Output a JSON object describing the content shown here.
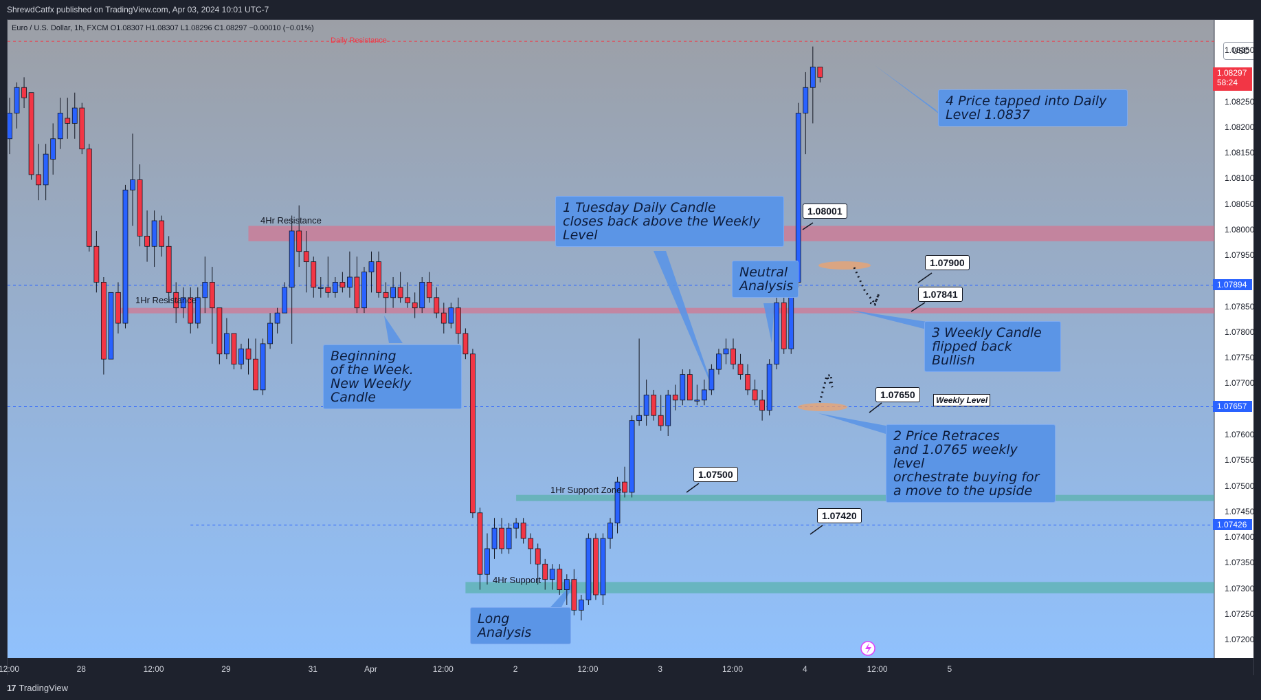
{
  "header": {
    "publisher": "ShrewdCatfx published on TradingView.com, Apr 03, 2024 10:01 UTC-7"
  },
  "footer": {
    "logo_mark": "17",
    "logo_text": "TradingView"
  },
  "chart_data": {
    "type": "candlestick",
    "symbol_line": "Euro / U.S. Dollar, 1h, FXCM  O1.08307  H1.08307  L1.08296  C1.08297  −0.00010 (−0.01%)",
    "currency": "USD",
    "ylim": [
      1.0718,
      1.08385
    ],
    "y_ticks": [
      "1.08350",
      "1.08250",
      "1.08200",
      "1.08150",
      "1.08100",
      "1.08050",
      "1.08000",
      "1.07950",
      "1.07850",
      "1.07800",
      "1.07750",
      "1.07700",
      "1.07600",
      "1.07550",
      "1.07500",
      "1.07450",
      "1.07400",
      "1.07350",
      "1.07300",
      "1.07250",
      "1.07200"
    ],
    "x_ticks": [
      {
        "label": "12:00",
        "b": 0
      },
      {
        "label": "28",
        "b": 10
      },
      {
        "label": "12:00",
        "b": 20
      },
      {
        "label": "29",
        "b": 30
      },
      {
        "label": "31",
        "b": 42
      },
      {
        "label": "Apr",
        "b": 50
      },
      {
        "label": "12:00",
        "b": 60
      },
      {
        "label": "2",
        "b": 70
      },
      {
        "label": "12:00",
        "b": 80
      },
      {
        "label": "3",
        "b": 90
      },
      {
        "label": "12:00",
        "b": 100
      },
      {
        "label": "4",
        "b": 110
      },
      {
        "label": "12:00",
        "b": 120
      },
      {
        "label": "5",
        "b": 130
      }
    ],
    "current_price": {
      "value": "1.08297",
      "countdown": "58:24",
      "color": "#f23645"
    },
    "price_badges": [
      {
        "value": "1.07894",
        "y": 1.07894
      },
      {
        "value": "1.07657",
        "y": 1.07657
      },
      {
        "value": "1.07426",
        "y": 1.07426
      }
    ],
    "candles": [
      [
        1.0818,
        1.0826,
        1.0815,
        1.0823
      ],
      [
        1.0823,
        1.0829,
        1.082,
        1.0828
      ],
      [
        1.0828,
        1.083,
        1.0824,
        1.0826
      ],
      [
        1.0827,
        1.0827,
        1.081,
        1.0811
      ],
      [
        1.0811,
        1.0817,
        1.0806,
        1.0809
      ],
      [
        1.0809,
        1.0817,
        1.0806,
        1.0815
      ],
      [
        1.0814,
        1.0821,
        1.0811,
        1.0818
      ],
      [
        1.0818,
        1.0826,
        1.0816,
        1.0823
      ],
      [
        1.0822,
        1.0826,
        1.0818,
        1.0821
      ],
      [
        1.0821,
        1.0827,
        1.0818,
        1.0824
      ],
      [
        1.0824,
        1.0825,
        1.0815,
        1.0816
      ],
      [
        1.0816,
        1.0817,
        1.0796,
        1.0797
      ],
      [
        1.0797,
        1.08,
        1.0788,
        1.079
      ],
      [
        1.079,
        1.0791,
        1.0772,
        1.0775
      ],
      [
        1.0775,
        1.0788,
        1.0775,
        1.0788
      ],
      [
        1.0788,
        1.079,
        1.078,
        1.0782
      ],
      [
        1.0782,
        1.0809,
        1.0781,
        1.0808
      ],
      [
        1.0808,
        1.0819,
        1.0801,
        1.081
      ],
      [
        1.081,
        1.0813,
        1.0797,
        1.0799
      ],
      [
        1.0799,
        1.0804,
        1.0794,
        1.0797
      ],
      [
        1.0797,
        1.0804,
        1.0793,
        1.0802
      ],
      [
        1.0802,
        1.0803,
        1.0795,
        1.0797
      ],
      [
        1.0797,
        1.0799,
        1.0786,
        1.0788
      ],
      [
        1.0788,
        1.079,
        1.0782,
        1.0785
      ],
      [
        1.0785,
        1.0789,
        1.0783,
        1.0787
      ],
      [
        1.0787,
        1.0789,
        1.078,
        1.0782
      ],
      [
        1.0782,
        1.0789,
        1.0781,
        1.0787
      ],
      [
        1.0787,
        1.0795,
        1.0784,
        1.079
      ],
      [
        1.079,
        1.0793,
        1.0778,
        1.0785
      ],
      [
        1.0785,
        1.0785,
        1.0774,
        1.0776
      ],
      [
        1.0776,
        1.0783,
        1.0775,
        1.078
      ],
      [
        1.078,
        1.078,
        1.0773,
        1.0774
      ],
      [
        1.0774,
        1.0778,
        1.0773,
        1.0777
      ],
      [
        1.0777,
        1.0779,
        1.0772,
        1.0775
      ],
      [
        1.0775,
        1.0779,
        1.0769,
        1.0769
      ],
      [
        1.0769,
        1.0779,
        1.0768,
        1.0778
      ],
      [
        1.0778,
        1.0784,
        1.0777,
        1.0782
      ],
      [
        1.0782,
        1.0785,
        1.078,
        1.0784
      ],
      [
        1.0784,
        1.079,
        1.0784,
        1.0789
      ],
      [
        1.0789,
        1.0803,
        1.0778,
        1.08
      ],
      [
        1.08,
        1.0805,
        1.0793,
        1.0796
      ],
      [
        1.0796,
        1.08,
        1.0788,
        1.0794
      ],
      [
        1.0794,
        1.0795,
        1.0787,
        1.0789
      ],
      [
        1.0789,
        1.0791,
        1.0787,
        1.0789
      ],
      [
        1.0789,
        1.0795,
        1.0787,
        1.0788
      ],
      [
        1.0788,
        1.0791,
        1.0787,
        1.079
      ],
      [
        1.079,
        1.0792,
        1.0788,
        1.0789
      ],
      [
        1.0789,
        1.0796,
        1.0787,
        1.0791
      ],
      [
        1.0791,
        1.0795,
        1.0784,
        1.0785
      ],
      [
        1.0785,
        1.0793,
        1.0784,
        1.0792
      ],
      [
        1.0792,
        1.0796,
        1.0788,
        1.0794
      ],
      [
        1.0794,
        1.0796,
        1.0787,
        1.0788
      ],
      [
        1.0788,
        1.079,
        1.0784,
        1.0787
      ],
      [
        1.0787,
        1.0791,
        1.0785,
        1.0789
      ],
      [
        1.0789,
        1.0792,
        1.0786,
        1.0787
      ],
      [
        1.0787,
        1.079,
        1.0785,
        1.0786
      ],
      [
        1.0786,
        1.0788,
        1.0783,
        1.0785
      ],
      [
        1.0785,
        1.0791,
        1.0784,
        1.079
      ],
      [
        1.079,
        1.0792,
        1.0786,
        1.0787
      ],
      [
        1.0787,
        1.0789,
        1.0783,
        1.0784
      ],
      [
        1.0784,
        1.0786,
        1.078,
        1.0782
      ],
      [
        1.0782,
        1.0786,
        1.0781,
        1.0785
      ],
      [
        1.0785,
        1.0787,
        1.0778,
        1.078
      ],
      [
        1.078,
        1.0781,
        1.0775,
        1.0776
      ],
      [
        1.0776,
        1.0777,
        1.0744,
        1.0745
      ],
      [
        1.0745,
        1.0746,
        1.073,
        1.0733
      ],
      [
        1.0733,
        1.0741,
        1.0731,
        1.0738
      ],
      [
        1.0738,
        1.0744,
        1.0736,
        1.0742
      ],
      [
        1.0742,
        1.0744,
        1.0737,
        1.0738
      ],
      [
        1.0738,
        1.0743,
        1.0737,
        1.0742
      ],
      [
        1.0742,
        1.0744,
        1.074,
        1.0743
      ],
      [
        1.0743,
        1.0744,
        1.0739,
        1.074
      ],
      [
        1.074,
        1.0741,
        1.0735,
        1.0738
      ],
      [
        1.0738,
        1.0739,
        1.0731,
        1.0735
      ],
      [
        1.0735,
        1.0736,
        1.073,
        1.0732
      ],
      [
        1.0732,
        1.0735,
        1.073,
        1.0734
      ],
      [
        1.0734,
        1.0735,
        1.0729,
        1.073
      ],
      [
        1.073,
        1.0733,
        1.0727,
        1.0732
      ],
      [
        1.0732,
        1.0734,
        1.0725,
        1.0726
      ],
      [
        1.0726,
        1.0729,
        1.0724,
        1.0728
      ],
      [
        1.0728,
        1.0741,
        1.0727,
        1.074
      ],
      [
        1.074,
        1.0741,
        1.0728,
        1.0729
      ],
      [
        1.0729,
        1.0741,
        1.0727,
        1.074
      ],
      [
        1.074,
        1.0744,
        1.0738,
        1.0743
      ],
      [
        1.0743,
        1.0752,
        1.0741,
        1.0751
      ],
      [
        1.0751,
        1.0754,
        1.0748,
        1.0749
      ],
      [
        1.0749,
        1.0764,
        1.0748,
        1.0763
      ],
      [
        1.0763,
        1.0779,
        1.0762,
        1.0764
      ],
      [
        1.0764,
        1.0771,
        1.0762,
        1.0768
      ],
      [
        1.0768,
        1.0769,
        1.0763,
        1.0764
      ],
      [
        1.0764,
        1.0768,
        1.0761,
        1.0762
      ],
      [
        1.0762,
        1.0769,
        1.076,
        1.0768
      ],
      [
        1.0768,
        1.077,
        1.0765,
        1.0767
      ],
      [
        1.0767,
        1.0773,
        1.0766,
        1.0772
      ],
      [
        1.0772,
        1.0773,
        1.0767,
        1.0767
      ],
      [
        1.0767,
        1.077,
        1.0766,
        1.0767
      ],
      [
        1.0767,
        1.0771,
        1.0766,
        1.0769
      ],
      [
        1.0769,
        1.0774,
        1.0768,
        1.0773
      ],
      [
        1.0773,
        1.0777,
        1.0772,
        1.0776
      ],
      [
        1.0776,
        1.0779,
        1.0774,
        1.0777
      ],
      [
        1.0777,
        1.0779,
        1.0773,
        1.0774
      ],
      [
        1.0774,
        1.0776,
        1.0771,
        1.0772
      ],
      [
        1.0772,
        1.0774,
        1.0768,
        1.0769
      ],
      [
        1.0769,
        1.0771,
        1.0766,
        1.0767
      ],
      [
        1.0767,
        1.0769,
        1.0763,
        1.0765
      ],
      [
        1.0765,
        1.0775,
        1.0764,
        1.0774
      ],
      [
        1.0774,
        1.0787,
        1.0773,
        1.0786
      ],
      [
        1.0786,
        1.0789,
        1.0776,
        1.0777
      ],
      [
        1.0777,
        1.0792,
        1.0776,
        1.079
      ],
      [
        1.079,
        1.0825,
        1.0789,
        1.0823
      ],
      [
        1.0823,
        1.0831,
        1.0815,
        1.0828
      ],
      [
        1.0828,
        1.0836,
        1.0821,
        1.0832
      ],
      [
        1.0832,
        1.0832,
        1.0829,
        1.083
      ]
    ],
    "levels": [
      {
        "name": "Daily Resistance",
        "price": 1.0837,
        "style": "dashed",
        "color": "#f23645",
        "label_visible": true
      },
      {
        "name": "4Hr Resistance",
        "price_top": 1.0801,
        "price_bottom": 1.0798,
        "start_bar": 33,
        "color": "#e06a86",
        "label_visible": true
      },
      {
        "name": "1Hr Resistance",
        "price_top": 1.0785,
        "price_bottom": 1.0784,
        "start_bar": 15,
        "color": "#e06a86",
        "label_visible": true
      },
      {
        "name": "1Hr Support Zone",
        "price_top": 1.07485,
        "price_bottom": 1.07473,
        "start_bar": 70,
        "color": "#4caf9e",
        "label_visible": true
      },
      {
        "name": "4Hr Support",
        "price_top": 1.07315,
        "price_bottom": 1.07293,
        "start_bar": 63,
        "color": "#4caf9e",
        "label_visible": true
      },
      {
        "name": "1.07894",
        "price": 1.07894,
        "style": "dashed",
        "color": "#2962ff"
      },
      {
        "name": "1.07657",
        "price": 1.07657,
        "style": "dashed",
        "color": "#2962ff"
      },
      {
        "name": "1.07426",
        "price": 1.07426,
        "style": "dashed",
        "color": "#2962ff",
        "start_bar": 25
      }
    ],
    "level_labels": {
      "daily_resistance": "Daily Resistance",
      "resistance_4h": "4Hr Resistance",
      "resistance_1h": "1Hr Resistance",
      "support_zone_1h": "1Hr Support Zone",
      "support_4h": "4Hr Support",
      "weekly_level": "Weekly Level"
    },
    "price_labels": [
      "1.08001",
      "1.07900",
      "1.07841",
      "1.07650",
      "1.07500",
      "1.07420"
    ],
    "annotations": [
      "4 Price tapped into Daily\nLevel 1.0837",
      "1 Tuesday Daily Candle\ncloses back above the Weekly\nLevel",
      "Neutral\nAnalysis",
      "3 Weekly Candle\nflipped back Bullish",
      "2 Price Retraces\nand 1.0765 weekly level\norchestrate buying for\na move to the upside",
      "Beginning\nof the Week.\nNew Weekly Candle",
      "Long Analysis"
    ],
    "colors": {
      "bull": "#2962ff",
      "bear": "#f23645",
      "bg_top": "#9c9fa6",
      "bg_bottom": "#90c2ff"
    }
  }
}
